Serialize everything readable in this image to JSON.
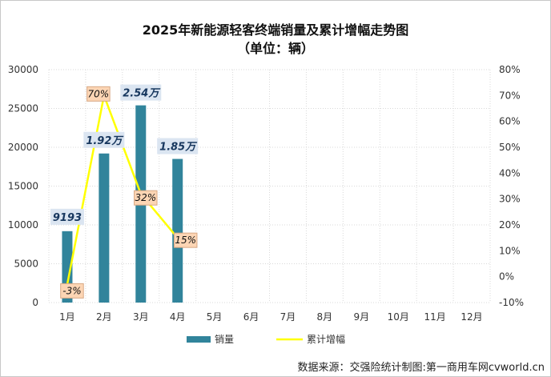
{
  "chart_data": {
    "type": "bar+line",
    "title": "2025年新能源轻客终端销量及累计增幅走势图",
    "subtitle": "（单位：辆）",
    "categories": [
      "1月",
      "2月",
      "3月",
      "4月",
      "5月",
      "6月",
      "7月",
      "8月",
      "9月",
      "10月",
      "11月",
      "12月"
    ],
    "series": [
      {
        "name": "销量",
        "type": "bar",
        "axis": "left",
        "color": "#31849b",
        "values": [
          9193,
          19200,
          25400,
          18500,
          null,
          null,
          null,
          null,
          null,
          null,
          null,
          null
        ],
        "labels": [
          "9193",
          "1.92万",
          "2.54万",
          "1.85万"
        ]
      },
      {
        "name": "累计增幅",
        "type": "line",
        "axis": "right",
        "color": "#ffff00",
        "values": [
          -3,
          70,
          32,
          15,
          null,
          null,
          null,
          null,
          null,
          null,
          null,
          null
        ],
        "labels": [
          "-3%",
          "70%",
          "32%",
          "15%"
        ]
      }
    ],
    "y_left": {
      "min": 0,
      "max": 30000,
      "ticks": [
        "0",
        "5000",
        "10000",
        "15000",
        "20000",
        "25000",
        "30000"
      ]
    },
    "y_right": {
      "min": -10,
      "max": 80,
      "ticks": [
        "-10%",
        "0%",
        "10%",
        "20%",
        "30%",
        "40%",
        "50%",
        "60%",
        "70%",
        "80%"
      ]
    },
    "grid": true,
    "legend": "bottom",
    "source": "数据来源：交强险统计制图:第一商用车网cvworld.cn"
  }
}
